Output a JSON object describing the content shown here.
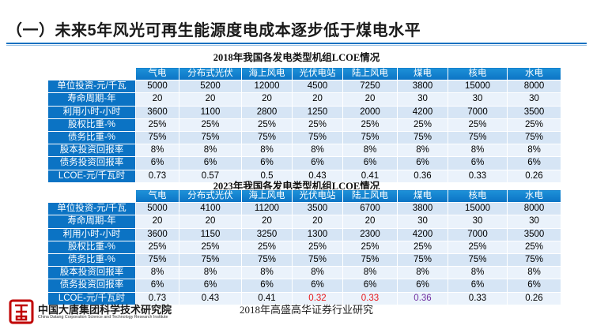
{
  "header": {
    "title": "（一）未来5年风光可再生能源度电成本逐步低于煤电水平"
  },
  "columns": [
    "气电",
    "分布式光伏",
    "海上风电",
    "光伏电站",
    "陆上风电",
    "煤电",
    "核电",
    "水电"
  ],
  "table2018": {
    "caption": "2018年我国各发电类型机组LCOE情况",
    "rows": [
      {
        "label": "单位投资-元/千瓦",
        "values": [
          "5000",
          "5200",
          "12000",
          "4500",
          "7250",
          "3800",
          "15000",
          "8000"
        ]
      },
      {
        "label": "寿命周期-年",
        "values": [
          "20",
          "20",
          "20",
          "20",
          "20",
          "30",
          "30",
          "30"
        ]
      },
      {
        "label": "利用小时-小时",
        "values": [
          "3600",
          "1100",
          "2800",
          "1250",
          "2000",
          "4200",
          "7000",
          "3500"
        ]
      },
      {
        "label": "股权比重-%",
        "values": [
          "25%",
          "25%",
          "25%",
          "25%",
          "25%",
          "25%",
          "25%",
          "25%"
        ]
      },
      {
        "label": "债务比重-%",
        "values": [
          "75%",
          "75%",
          "75%",
          "75%",
          "75%",
          "75%",
          "75%",
          "75%"
        ]
      },
      {
        "label": "股本投资回报率",
        "values": [
          "8%",
          "8%",
          "8%",
          "8%",
          "8%",
          "8%",
          "8%",
          "8%"
        ]
      },
      {
        "label": "债务投资回报率",
        "values": [
          "6%",
          "6%",
          "6%",
          "6%",
          "6%",
          "6%",
          "6%",
          "6%"
        ]
      },
      {
        "label": "LCOE-元/千瓦时",
        "values": [
          "0.73",
          "0.57",
          "0.5",
          "0.43",
          "0.41",
          "0.36",
          "0.33",
          "0.26"
        ]
      }
    ]
  },
  "table2023": {
    "caption": "2023年我国各发电类型机组LCOE情况",
    "rows": [
      {
        "label": "单位投资-元/千瓦",
        "values": [
          "5000",
          "4100",
          "11200",
          "3500",
          "6700",
          "3800",
          "15000",
          "8000"
        ]
      },
      {
        "label": "寿命周期-年",
        "values": [
          "20",
          "20",
          "20",
          "20",
          "20",
          "30",
          "30",
          "30"
        ]
      },
      {
        "label": "利用小时-小时",
        "values": [
          "3600",
          "1150",
          "3250",
          "1300",
          "2300",
          "4200",
          "7000",
          "3500"
        ]
      },
      {
        "label": "股权比重-%",
        "values": [
          "25%",
          "25%",
          "25%",
          "25%",
          "25%",
          "25%",
          "25%",
          "25%"
        ]
      },
      {
        "label": "债务比重-%",
        "values": [
          "75%",
          "75%",
          "75%",
          "75%",
          "75%",
          "75%",
          "75%",
          "75%"
        ]
      },
      {
        "label": "股本投资回报率",
        "values": [
          "8%",
          "8%",
          "8%",
          "8%",
          "8%",
          "8%",
          "8%",
          "8%"
        ]
      },
      {
        "label": "债务投资回报率",
        "values": [
          "6%",
          "6%",
          "6%",
          "6%",
          "6%",
          "6%",
          "6%",
          "6%"
        ]
      },
      {
        "label": "LCOE-元/千瓦时",
        "values": [
          "0.73",
          "0.43",
          "0.41",
          "0.32",
          "0.33",
          "0.36",
          "0.33",
          "0.26"
        ]
      }
    ],
    "highlight_colors": {
      "red": "#e8191c",
      "purple": "#7030a0"
    }
  },
  "footer": {
    "logo_cn": "中国大唐集团科学技术研究院",
    "logo_en": "China Datang Corporation Science and Technology Research Institute",
    "source": "2018年高盛高华证券行业研究"
  }
}
